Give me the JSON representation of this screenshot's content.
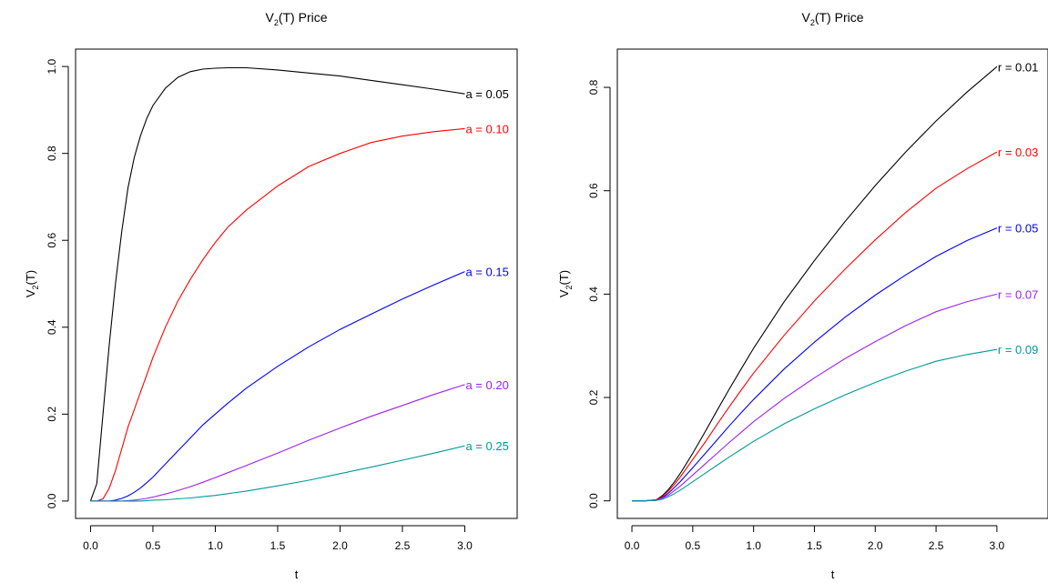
{
  "chart_data": [
    {
      "type": "line",
      "title": "V2(T) Price",
      "title_parts": {
        "main": "V",
        "sub": "2",
        "rest": "(T) Price"
      },
      "xlabel": "t",
      "ylabel": "V2(T)",
      "ylabel_parts": {
        "main": "V",
        "sub": "2",
        "rest": "(T)"
      },
      "xlim": [
        -0.12,
        3.42
      ],
      "ylim": [
        -0.04,
        1.04
      ],
      "xticks": [
        0.0,
        0.5,
        1.0,
        1.5,
        2.0,
        2.5,
        3.0
      ],
      "xtick_labels": [
        "0.0",
        "0.5",
        "1.0",
        "1.5",
        "2.0",
        "2.5",
        "3.0"
      ],
      "yticks": [
        0.0,
        0.2,
        0.4,
        0.6,
        0.8,
        1.0
      ],
      "ytick_labels": [
        "0.0",
        "0.2",
        "0.4",
        "0.6",
        "0.8",
        "1.0"
      ],
      "grid": false,
      "legend": "end-of-line labels",
      "x": [
        0.0,
        0.05,
        0.1,
        0.15,
        0.2,
        0.25,
        0.3,
        0.35,
        0.4,
        0.45,
        0.5,
        0.6,
        0.7,
        0.8,
        0.9,
        1.0,
        1.1,
        1.25,
        1.5,
        1.75,
        2.0,
        2.25,
        2.5,
        2.75,
        3.0
      ],
      "series": [
        {
          "label": "a = 0.05",
          "color": "#000000",
          "values": [
            0.0,
            0.04,
            0.2,
            0.36,
            0.5,
            0.62,
            0.72,
            0.79,
            0.84,
            0.88,
            0.91,
            0.95,
            0.975,
            0.988,
            0.994,
            0.996,
            0.997,
            0.997,
            0.992,
            0.985,
            0.978,
            0.968,
            0.958,
            0.948,
            0.937
          ]
        },
        {
          "label": "a = 0.10",
          "color": "#ff0000",
          "values": [
            0.0,
            0.0,
            0.005,
            0.03,
            0.07,
            0.12,
            0.17,
            0.21,
            0.25,
            0.29,
            0.33,
            0.4,
            0.46,
            0.51,
            0.555,
            0.595,
            0.63,
            0.67,
            0.725,
            0.77,
            0.8,
            0.825,
            0.84,
            0.85,
            0.857
          ]
        },
        {
          "label": "a = 0.15",
          "color": "#0000ff",
          "values": [
            0.0,
            0.0,
            0.0,
            0.0,
            0.002,
            0.006,
            0.012,
            0.02,
            0.03,
            0.042,
            0.055,
            0.085,
            0.115,
            0.145,
            0.175,
            0.2,
            0.225,
            0.26,
            0.31,
            0.355,
            0.395,
            0.43,
            0.465,
            0.497,
            0.528
          ]
        },
        {
          "label": "a = 0.20",
          "color": "#a020f0",
          "values": [
            0.0,
            0.0,
            0.0,
            0.0,
            0.0,
            0.0,
            0.001,
            0.002,
            0.004,
            0.006,
            0.009,
            0.016,
            0.024,
            0.033,
            0.043,
            0.054,
            0.065,
            0.082,
            0.11,
            0.14,
            0.168,
            0.195,
            0.22,
            0.245,
            0.268
          ]
        },
        {
          "label": "a = 0.25",
          "color": "#009999",
          "values": [
            0.0,
            0.0,
            0.0,
            0.0,
            0.0,
            0.0,
            0.0,
            0.0,
            0.0,
            0.001,
            0.002,
            0.003,
            0.005,
            0.007,
            0.01,
            0.013,
            0.017,
            0.023,
            0.035,
            0.048,
            0.063,
            0.078,
            0.094,
            0.11,
            0.127
          ]
        }
      ]
    },
    {
      "type": "line",
      "title": "V2(T) Price",
      "title_parts": {
        "main": "V",
        "sub": "2",
        "rest": "(T) Price"
      },
      "xlabel": "t",
      "ylabel": "V2(T)",
      "ylabel_parts": {
        "main": "V",
        "sub": "2",
        "rest": "(T)"
      },
      "xlim": [
        -0.12,
        3.42
      ],
      "ylim": [
        -0.034,
        0.874
      ],
      "xticks": [
        0.0,
        0.5,
        1.0,
        1.5,
        2.0,
        2.5,
        3.0
      ],
      "xtick_labels": [
        "0.0",
        "0.5",
        "1.0",
        "1.5",
        "2.0",
        "2.5",
        "3.0"
      ],
      "yticks": [
        0.0,
        0.2,
        0.4,
        0.6,
        0.8
      ],
      "ytick_labels": [
        "0.0",
        "0.2",
        "0.4",
        "0.6",
        "0.8"
      ],
      "grid": false,
      "legend": "end-of-line labels",
      "x": [
        0.0,
        0.1,
        0.2,
        0.25,
        0.3,
        0.35,
        0.4,
        0.5,
        0.6,
        0.7,
        0.8,
        0.9,
        1.0,
        1.25,
        1.5,
        1.75,
        2.0,
        2.25,
        2.5,
        2.75,
        3.0
      ],
      "series": [
        {
          "label": "r = 0.01",
          "color": "#000000",
          "values": [
            0.0,
            0.0,
            0.002,
            0.01,
            0.022,
            0.037,
            0.054,
            0.092,
            0.133,
            0.175,
            0.216,
            0.256,
            0.295,
            0.385,
            0.465,
            0.54,
            0.61,
            0.675,
            0.735,
            0.79,
            0.84
          ]
        },
        {
          "label": "r = 0.03",
          "color": "#ff0000",
          "values": [
            0.0,
            0.0,
            0.002,
            0.008,
            0.019,
            0.032,
            0.047,
            0.08,
            0.113,
            0.148,
            0.182,
            0.215,
            0.247,
            0.32,
            0.387,
            0.448,
            0.505,
            0.558,
            0.605,
            0.642,
            0.675
          ]
        },
        {
          "label": "r = 0.05",
          "color": "#0000ff",
          "values": [
            0.0,
            0.0,
            0.001,
            0.006,
            0.015,
            0.026,
            0.038,
            0.064,
            0.091,
            0.118,
            0.145,
            0.171,
            0.196,
            0.255,
            0.307,
            0.355,
            0.398,
            0.437,
            0.473,
            0.503,
            0.528
          ]
        },
        {
          "label": "r = 0.07",
          "color": "#a020f0",
          "values": [
            0.0,
            0.0,
            0.001,
            0.005,
            0.011,
            0.02,
            0.029,
            0.05,
            0.071,
            0.092,
            0.113,
            0.133,
            0.153,
            0.198,
            0.238,
            0.275,
            0.308,
            0.339,
            0.366,
            0.385,
            0.4
          ]
        },
        {
          "label": "r = 0.09",
          "color": "#009999",
          "values": [
            0.0,
            0.0,
            0.001,
            0.003,
            0.008,
            0.014,
            0.021,
            0.037,
            0.053,
            0.069,
            0.085,
            0.1,
            0.115,
            0.149,
            0.178,
            0.205,
            0.229,
            0.251,
            0.27,
            0.283,
            0.293
          ]
        }
      ]
    }
  ]
}
